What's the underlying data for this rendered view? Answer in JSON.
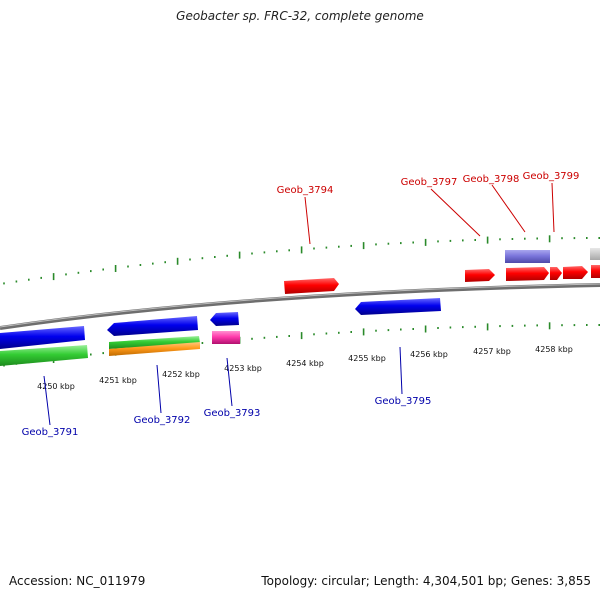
{
  "title": "Geobacter sp. FRC-32, complete genome",
  "footer": {
    "accession": "Accession: NC_011979",
    "summary": "Topology: circular; Length: 4,304,501 bp; Genes: 3,855"
  },
  "colors": {
    "forward_label": "#cc0000",
    "reverse_label": "#0000aa",
    "tick": "#2a8a2a",
    "backbone": "#888888"
  },
  "ticks": [
    {
      "label": "4250 kbp"
    },
    {
      "label": "4251 kbp"
    },
    {
      "label": "4252 kbp"
    },
    {
      "label": "4253 kbp"
    },
    {
      "label": "4254 kbp"
    },
    {
      "label": "4255 kbp"
    },
    {
      "label": "4256 kbp"
    },
    {
      "label": "4257 kbp"
    },
    {
      "label": "4258 kbp"
    }
  ],
  "gene_labels": {
    "forward": [
      "Geob_3794",
      "Geob_3797",
      "Geob_3798",
      "Geob_3799"
    ],
    "reverse": [
      "Geob_3791",
      "Geob_3792",
      "Geob_3793",
      "Geob_3795"
    ]
  }
}
